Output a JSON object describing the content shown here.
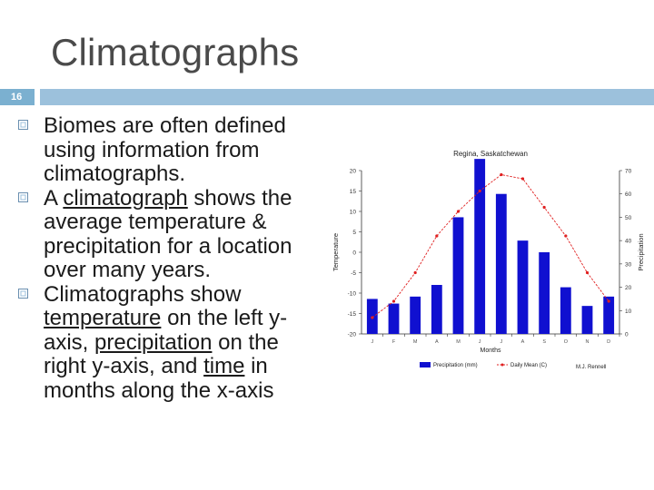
{
  "slide": {
    "title": "Climatographs",
    "number": "16"
  },
  "bullets": [
    {
      "parts": [
        {
          "t": "Biomes are often defined using information from climatographs.",
          "u": false
        }
      ]
    },
    {
      "parts": [
        {
          "t": "A ",
          "u": false
        },
        {
          "t": "climatograph",
          "u": true
        },
        {
          "t": " shows the average temperature & precipitation for a location over many years.",
          "u": false
        }
      ]
    },
    {
      "parts": [
        {
          "t": "Climatographs show ",
          "u": false
        },
        {
          "t": "temperature",
          "u": true
        },
        {
          "t": " on the left y-axis, ",
          "u": false
        },
        {
          "t": "precipitation",
          "u": true
        },
        {
          "t": " on the right y-axis, and ",
          "u": false
        },
        {
          "t": "time",
          "u": true
        },
        {
          "t": " in months along the x-axis",
          "u": false
        }
      ]
    }
  ],
  "colors": {
    "accent": "#9cc1dc",
    "number_box": "#7bb0d0",
    "bar": "#1010d0",
    "line": "#e02020"
  },
  "chart_data": {
    "type": "bar",
    "title": "Regina, Saskatchewan",
    "xlabel": "Months",
    "ylabel": "Temperature",
    "y2label": "Precipitation",
    "categories": [
      "J",
      "F",
      "M",
      "A",
      "M",
      "J",
      "J",
      "A",
      "S",
      "O",
      "N",
      "D"
    ],
    "ylim": [
      -20,
      20
    ],
    "y2lim": [
      0,
      70
    ],
    "left_ticks": [
      "20",
      "15",
      "10",
      "5",
      "0",
      "-5",
      "-10",
      "-15",
      "-20"
    ],
    "right_ticks": [
      "70",
      "60",
      "50",
      "40",
      "30",
      "20",
      "10",
      "0"
    ],
    "series": [
      {
        "name": "Precipitation (mm)",
        "type": "bar",
        "axis": "right",
        "values": [
          15,
          13,
          16,
          21,
          50,
          75,
          60,
          40,
          35,
          20,
          12,
          16
        ]
      },
      {
        "name": "Daily Mean (C)",
        "type": "line",
        "axis": "left",
        "values": [
          -16,
          -12,
          -5,
          4,
          10,
          15,
          19,
          18,
          11,
          4,
          -5,
          -12
        ]
      }
    ],
    "legend": "bottom",
    "credit": "M.J. Rennell"
  }
}
